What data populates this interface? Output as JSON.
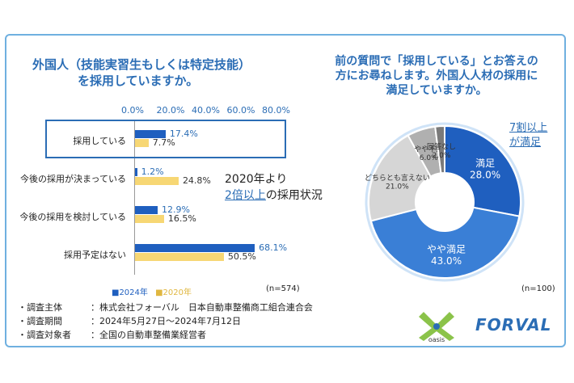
{
  "left_question": [
    "外国人（技能実習生もしくは特定技能）",
    "を採用していますか。"
  ],
  "right_question": [
    "前の質問で「採用している」とお答えの",
    "方にお尋ねします。外国人人材の採用に",
    "満足していますか。"
  ],
  "callout_left": {
    "line1": "2020年より",
    "line2_em": "2倍以上",
    "line2_rest": "の採用状況"
  },
  "callout_right": {
    "line1_em": "7割",
    "line1_rest": "以上",
    "line2": "が満足"
  },
  "legend": {
    "series_2024": "■2024年",
    "series_2020": "■2020年"
  },
  "n_left": "(n=574)",
  "n_right": "(n=100)",
  "notes": [
    {
      "label": "・調査主体",
      "value": "：株式会社フォーバル　日本自動車整備商工組合連合会"
    },
    {
      "label": "・調査期間",
      "value": "：2024年5月27日〜2024年7月12日"
    },
    {
      "label": "・調査対象者",
      "value": "：全国の自動車整備業経営者"
    }
  ],
  "logos": {
    "oasis": "oasis",
    "forval": "FORVAL"
  },
  "colors": {
    "blue": "#1f5fbf",
    "yellow": "#f7d774",
    "accent": "#2b6db5",
    "frame": "#6fb0e0"
  },
  "chart_data": [
    {
      "type": "bar",
      "orientation": "horizontal",
      "title": "外国人（技能実習生もしくは特定技能）を採用していますか。",
      "categories": [
        "採用している",
        "今後の採用が決まっている",
        "今後の採用を検討している",
        "採用予定はない"
      ],
      "xticks": [
        "0.0%",
        "20.0%",
        "40.0%",
        "60.0%",
        "80.0%"
      ],
      "xlim": [
        0,
        80
      ],
      "series": [
        {
          "name": "2024年",
          "values": [
            17.4,
            1.2,
            12.9,
            68.1
          ],
          "labels": [
            "17.4%",
            "1.2%",
            "12.9%",
            "68.1%"
          ],
          "color": "#1f5fbf"
        },
        {
          "name": "2020年",
          "values": [
            7.7,
            24.8,
            16.5,
            50.5
          ],
          "labels": [
            "7.7%",
            "24.8%",
            "16.5%",
            "50.5%"
          ],
          "color": "#f7d774"
        }
      ],
      "legend": "bottom"
    },
    {
      "type": "pie",
      "style": "donut",
      "title": "外国人人材の採用に満足していますか。",
      "slices": [
        {
          "name": "満足",
          "value": 28.0,
          "label": "28.0%",
          "color": "#1f5fbf"
        },
        {
          "name": "やや満足",
          "value": 43.0,
          "label": "43.0%",
          "color": "#3a7fd6"
        },
        {
          "name": "どちらとも言えない",
          "value": 21.0,
          "label": "21.0%",
          "color": "#d6d6d6"
        },
        {
          "name": "やや不満",
          "value": 6.0,
          "label": "6.0%",
          "color": "#b0b0b0"
        },
        {
          "name": "回答なし",
          "value": 2.0,
          "label": "2.0%",
          "color": "#7a7a7a"
        }
      ]
    }
  ]
}
